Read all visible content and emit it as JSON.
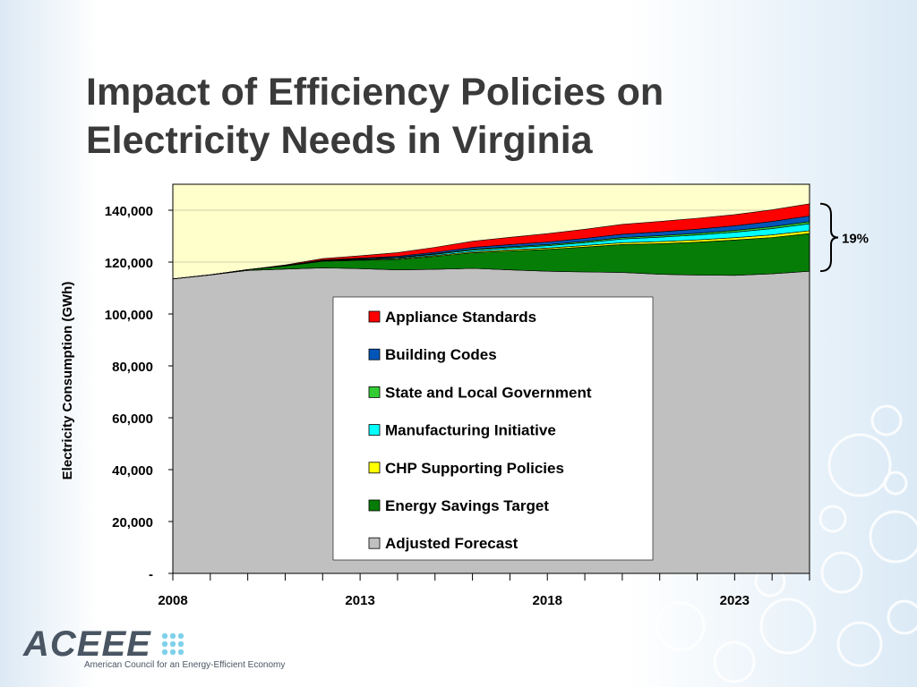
{
  "title": {
    "line1": "Impact of Efficiency Policies on",
    "line2": "Electricity Needs in Virginia"
  },
  "logo": {
    "wordmark": "ACEEE",
    "tagline": "American Council for an Energy-Efficient Economy"
  },
  "colors": {
    "plot_background": "#ffffcc",
    "title_text": "#3a3a3a",
    "logo": "#4a5563",
    "logo_dots": "#7fd0ea"
  },
  "chart_data": {
    "type": "area",
    "stacked": true,
    "ylabel": "Electricity Consumption (GWh)",
    "xlabel": "",
    "xlim": [
      2008,
      2025
    ],
    "ylim": [
      0,
      150000
    ],
    "x_tick_labels": [
      "2008",
      "2013",
      "2018",
      "2023"
    ],
    "y_tick_labels": [
      "-",
      "20,000",
      "40,000",
      "60,000",
      "80,000",
      "100,000",
      "120,000",
      "140,000"
    ],
    "grid": true,
    "legend_position": "center",
    "annotation": "19%",
    "x": [
      2008,
      2009,
      2010,
      2011,
      2012,
      2013,
      2014,
      2015,
      2016,
      2017,
      2018,
      2019,
      2020,
      2021,
      2022,
      2023,
      2024,
      2025
    ],
    "series": [
      {
        "name": "Adjusted Forecast",
        "color": "#c0c0c0",
        "values": [
          113500,
          115000,
          116800,
          117300,
          117800,
          117500,
          117000,
          117200,
          117600,
          117000,
          116500,
          116200,
          116000,
          115300,
          115000,
          114900,
          115500,
          116500
        ]
      },
      {
        "name": "Energy Savings Target",
        "color": "#067d06",
        "values": [
          0,
          100,
          300,
          1200,
          2500,
          3200,
          4000,
          5000,
          6000,
          7300,
          8400,
          9600,
          10800,
          11800,
          12700,
          13600,
          14000,
          14500
        ]
      },
      {
        "name": "CHP Supporting Policies",
        "color": "#ffff00",
        "values": [
          0,
          0,
          0,
          50,
          150,
          200,
          300,
          350,
          400,
          450,
          500,
          600,
          700,
          800,
          850,
          900,
          1000,
          1100
        ]
      },
      {
        "name": "Manufacturing Initiative",
        "color": "#00ffff",
        "values": [
          0,
          0,
          0,
          50,
          150,
          250,
          350,
          450,
          600,
          750,
          900,
          1100,
          1400,
          1700,
          1900,
          2100,
          2400,
          2700
        ]
      },
      {
        "name": "State and Local Government",
        "color": "#33cc33",
        "values": [
          0,
          0,
          0,
          50,
          100,
          150,
          200,
          250,
          350,
          400,
          450,
          500,
          550,
          600,
          650,
          700,
          750,
          800
        ]
      },
      {
        "name": "Building Codes",
        "color": "#0055b8",
        "values": [
          0,
          0,
          0,
          50,
          150,
          250,
          400,
          550,
          700,
          850,
          1000,
          1150,
          1300,
          1450,
          1600,
          1800,
          2000,
          2200
        ]
      },
      {
        "name": "Appliance Standards",
        "color": "#ff0000",
        "values": [
          0,
          0,
          0,
          200,
          500,
          900,
          1400,
          1900,
          2400,
          2800,
          3200,
          3500,
          3800,
          4000,
          4200,
          4300,
          4500,
          4700
        ]
      }
    ],
    "legend_order": [
      "Appliance Standards",
      "Building Codes",
      "State and Local Government",
      "Manufacturing Initiative",
      "CHP Supporting Policies",
      "Energy Savings Target",
      "Adjusted Forecast"
    ]
  }
}
